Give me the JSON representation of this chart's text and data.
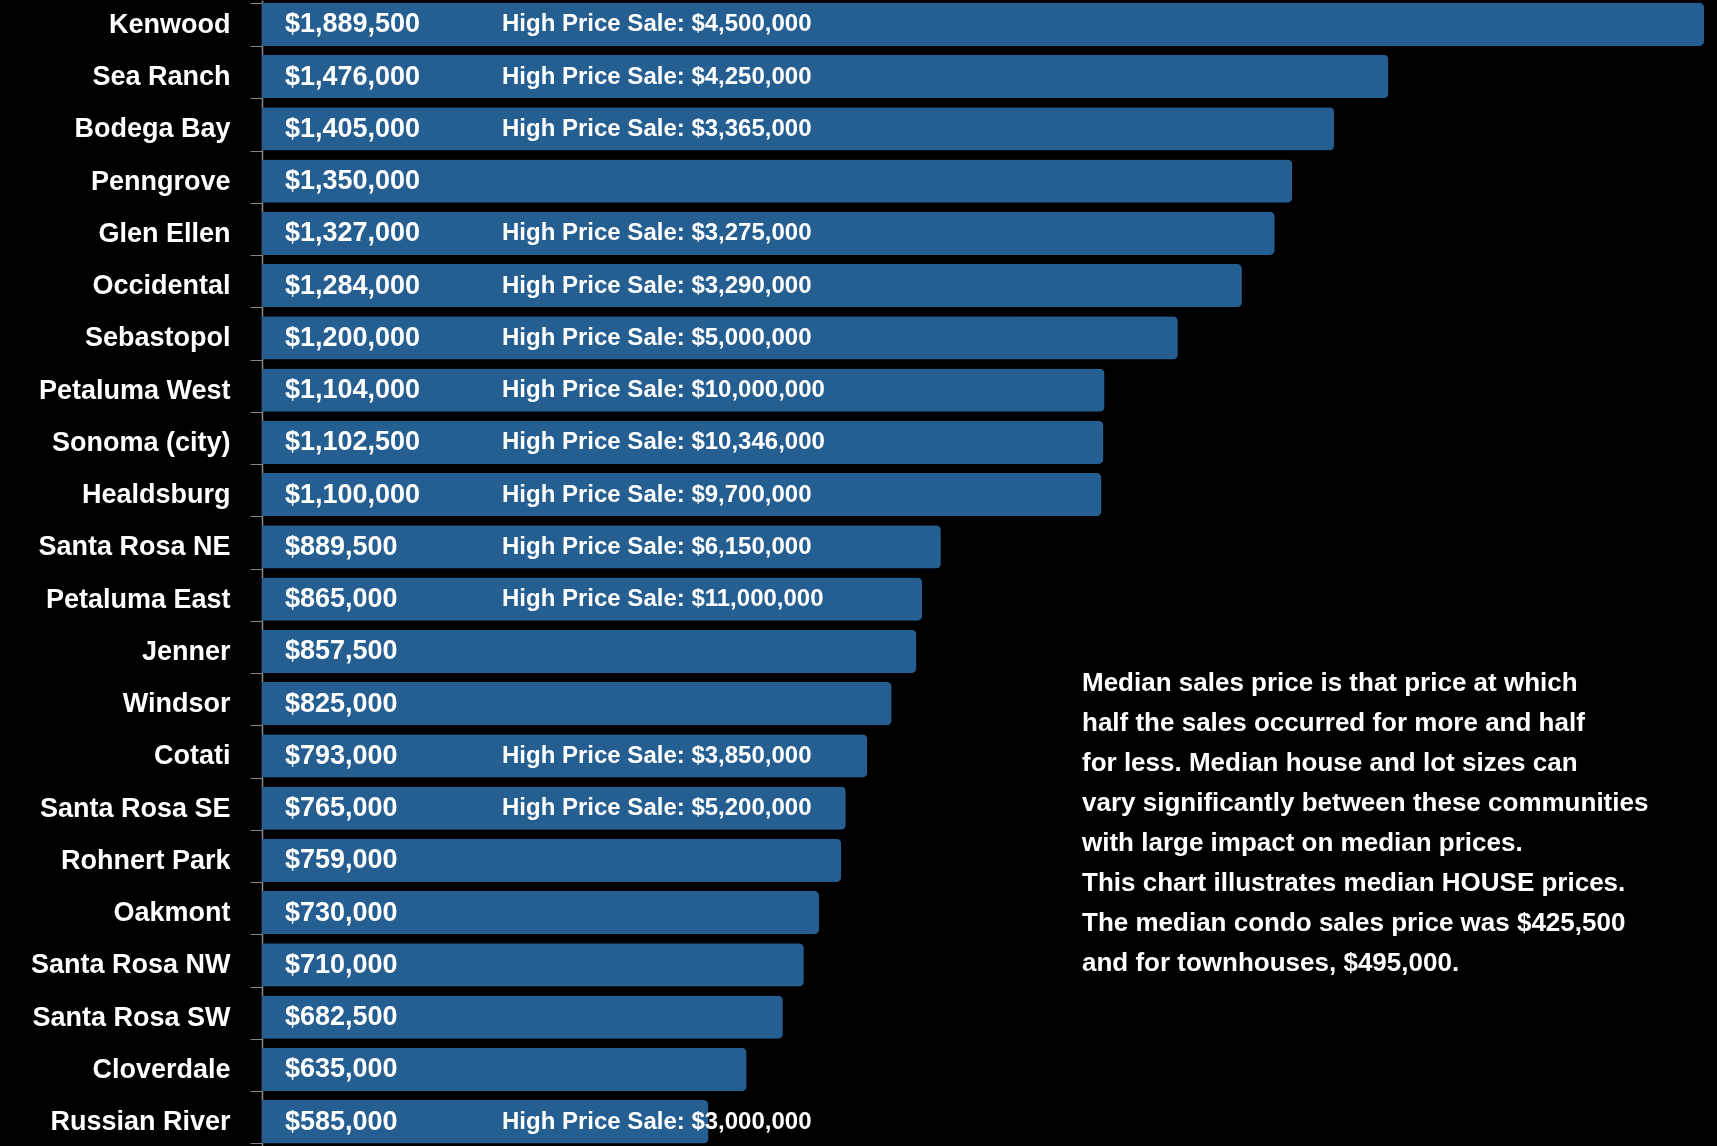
{
  "chart_data": {
    "type": "bar",
    "orientation": "horizontal",
    "tick_labels": "y",
    "data_labels": true,
    "categories": [
      "Kenwood",
      "Sea Ranch",
      "Bodega Bay",
      "Penngrove",
      "Glen Ellen",
      "Occidental",
      "Sebastopol",
      "Petaluma West",
      "Sonoma (city)",
      "Healdsburg",
      "Santa Rosa NE",
      "Petaluma East",
      "Jenner",
      "Windsor",
      "Cotati",
      "Santa Rosa SE",
      "Rohnert Park",
      "Oakmont",
      "Santa Rosa NW",
      "Santa Rosa SW",
      "Cloverdale",
      "Russian River"
    ],
    "values": [
      1889500,
      1476000,
      1405000,
      1350000,
      1327000,
      1284000,
      1200000,
      1104000,
      1102500,
      1100000,
      889500,
      865000,
      857500,
      825000,
      793000,
      765000,
      759000,
      730000,
      710000,
      682500,
      635000,
      585000
    ],
    "value_labels": [
      "$1,889,500",
      "$1,476,000",
      "$1,405,000",
      "$1,350,000",
      "$1,327,000",
      "$1,284,000",
      "$1,200,000",
      "$1,104,000",
      "$1,102,500",
      "$1,100,000",
      "$889,500",
      "$865,000",
      "$857,500",
      "$825,000",
      "$793,000",
      "$765,000",
      "$759,000",
      "$730,000",
      "$710,000",
      "$682,500",
      "$635,000",
      "$585,000"
    ],
    "color": "#255e91",
    "xlim": [
      0,
      1900000
    ],
    "annotations": [
      {
        "text": "High Price Sale:  $4,500,000",
        "y": "Kenwood"
      },
      {
        "text": "High Price Sale:  $4,250,000",
        "y": "Sea Ranch"
      },
      {
        "text": "High Price Sale:  $3,365,000",
        "y": "Bodega Bay"
      },
      {
        "text": "High Price Sale:  $3,275,000",
        "y": "Glen Ellen"
      },
      {
        "text": "High Price Sale:  $3,290,000",
        "y": "Occidental"
      },
      {
        "text": "High Price Sale:  $5,000,000",
        "y": "Sebastopol"
      },
      {
        "text": "High Price Sale:  $10,000,000",
        "y": "Petaluma West"
      },
      {
        "text": "High Price Sale:  $10,346,000",
        "y": "Sonoma (city)"
      },
      {
        "text": "High Price Sale:  $9,700,000",
        "y": "Healdsburg"
      },
      {
        "text": "High Price Sale:  $6,150,000",
        "y": "Santa Rosa NE"
      },
      {
        "text": "High Price Sale:  $11,000,000",
        "y": "Petaluma East"
      },
      {
        "text": "High Price Sale:  $3,850,000",
        "y": "Cotati"
      },
      {
        "text": "High Price Sale:  $5,200,000",
        "y": "Santa Rosa SE"
      },
      {
        "text": "High Price Sale:  $3,000,000",
        "y": "Russian River"
      },
      "Median sales price is that price at which half the sales occurred for more and half for less. Median house and lot sizes can vary significantly between these communities with large impact on median prices.",
      "This chart illustrates median HOUSE prices. The median condo sales price was $425,500 and for townhouses, $495,000."
    ]
  }
}
